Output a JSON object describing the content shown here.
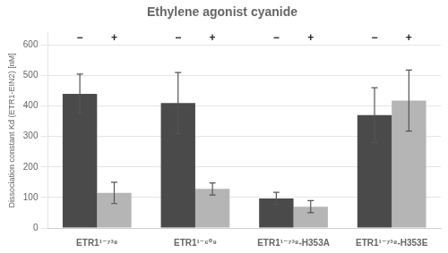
{
  "chart_data": {
    "type": "bar",
    "title": "Ethylene agonist cyanide",
    "ylabel": "Dissociation constant Kd (ETR1-EIN2) [nM]",
    "categories": [
      "ETR1¹⁻⁷³⁸",
      "ETR1¹⁻⁶⁰⁹",
      "ETR1¹⁻⁷³⁸-H353A",
      "ETR1¹⁻⁷³⁸-H353E"
    ],
    "series": [
      {
        "name": "−",
        "color": "#4a4a4a",
        "values": [
          440,
          410,
          97,
          370
        ],
        "errors": [
          65,
          100,
          20,
          90
        ]
      },
      {
        "name": "+",
        "color": "#b5b5b5",
        "values": [
          115,
          128,
          70,
          418
        ],
        "errors": [
          35,
          20,
          20,
          100
        ]
      }
    ],
    "ylim": [
      0,
      640
    ],
    "yticks": [
      0,
      100,
      200,
      300,
      400,
      500,
      600
    ],
    "grid": true
  }
}
